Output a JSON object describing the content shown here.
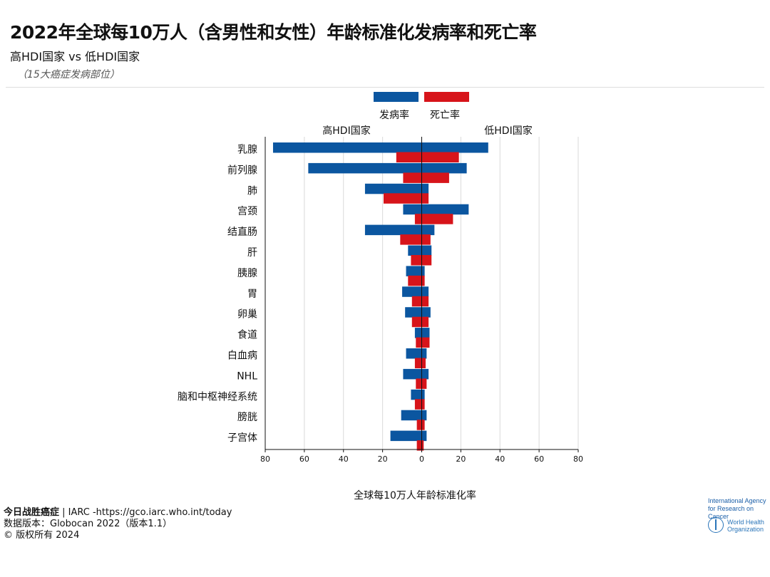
{
  "header": {
    "title": "2022年全球每10万人（含男性和女性）年龄标准化发病率和死亡率",
    "subtitle": "高HDI国家 vs 低HDI国家",
    "note": "（15大癌症发病部位）"
  },
  "footer": {
    "line1_bold": "今日战胜癌症",
    "line1_rest": " | IARC -https://gco.iarc.who.int/today",
    "line2": "数据版本：Globocan 2022（版本1.1）",
    "line3": "© 版权所有 2024"
  },
  "logos": {
    "iarc_line1": "International Agency",
    "iarc_line2": "for Research on Cancer",
    "who_line1": "World Health",
    "who_line2": "Organization"
  },
  "chart_data": {
    "type": "bar",
    "orientation": "horizontal-butterfly",
    "left_panel_label": "高HDI国家",
    "right_panel_label": "低HDI国家",
    "xlabel": "全球每10万人年龄标准化率",
    "xlim": [
      -80,
      80
    ],
    "xticks": [
      -80,
      -60,
      -40,
      -20,
      0,
      20,
      40,
      60,
      80
    ],
    "xtick_labels": [
      "80",
      "60",
      "40",
      "20",
      "0",
      "20",
      "40",
      "60",
      "80"
    ],
    "grid": true,
    "legend_position": "top-center",
    "categories": [
      "乳腺",
      "前列腺",
      "肺",
      "宫颈",
      "结直肠",
      "肝",
      "胰腺",
      "胃",
      "卵巢",
      "食道",
      "白血病",
      "NHL",
      "脑和中枢神经系统",
      "膀胱",
      "子宫体"
    ],
    "series": [
      {
        "name": "发病率",
        "color": "#0b56a0",
        "high_hdi": [
          76,
          58,
          29,
          9.5,
          29,
          7,
          8,
          10,
          8.5,
          3.5,
          8,
          9.5,
          5.5,
          10.5,
          16
        ],
        "low_hdi": [
          34,
          23,
          3.5,
          24,
          6.5,
          5,
          1.5,
          3.5,
          4.5,
          4,
          2.5,
          3.5,
          1.5,
          2.5,
          2.5
        ]
      },
      {
        "name": "死亡率",
        "color": "#d7141a",
        "high_hdi": [
          13,
          9.5,
          19.5,
          3.5,
          11,
          5.5,
          7,
          5,
          5,
          3,
          3.5,
          3,
          3.5,
          2.5,
          2.5
        ],
        "low_hdi": [
          19,
          14,
          3.5,
          16,
          4.5,
          5,
          1.5,
          3.5,
          3.5,
          4,
          2,
          2.5,
          1.5,
          1.5,
          1
        ]
      }
    ]
  }
}
